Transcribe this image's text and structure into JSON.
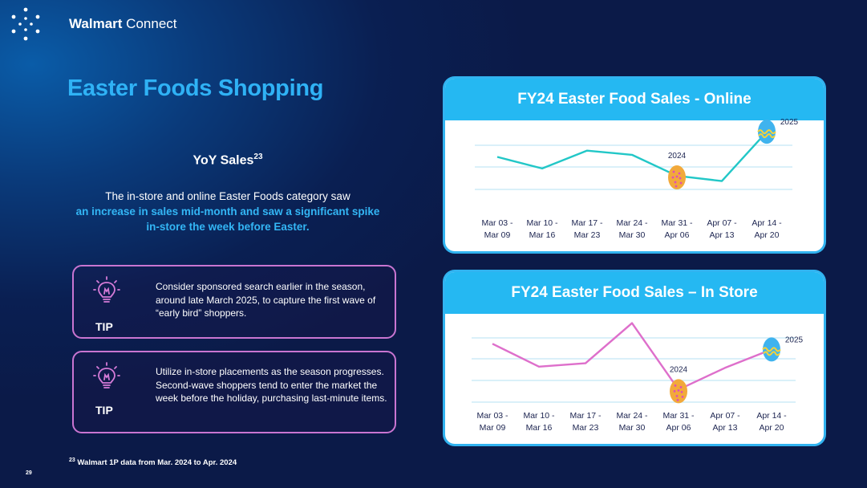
{
  "brand": {
    "name_bold": "Walmart",
    "name_light": " Connect"
  },
  "page_title": "Easter Foods Shopping",
  "yoy": {
    "title": "YoY Sales",
    "sup": "23"
  },
  "description": {
    "line1": "The in-store and online Easter Foods category saw",
    "highlight": "an increase in sales mid-month and saw a significant spike in-store the week before Easter."
  },
  "tips": [
    {
      "label": "TIP",
      "text": "Consider sponsored search earlier in the season, around late March 2025, to capture the first wave of “early bird” shoppers."
    },
    {
      "label": "TIP",
      "text": "Utilize in-store placements as the season progresses. Second-wave shoppers tend to enter the market the week before the holiday, purchasing last-minute items."
    }
  ],
  "footnote": {
    "sup": "23",
    "text": " Walmart 1P data from Mar. 2024 to Apr. 2024"
  },
  "page_number": "29",
  "colors": {
    "accent": "#2fb2f5",
    "online_line": "#22c7c7",
    "instore_line": "#de6fcb",
    "tip_border": "#c975d1",
    "egg_2024": "#f2a93b",
    "egg_2025": "#3fb3ee"
  },
  "chart_data": [
    {
      "type": "line",
      "title": "FY24 Easter Food Sales - Online",
      "categories": [
        "Mar 03 - Mar 09",
        "Mar 10 - Mar 16",
        "Mar 17 - Mar 23",
        "Mar 24 - Mar 30",
        "Mar 31 - Apr 06",
        "Apr 07 - Apr 13",
        "Apr 14 - Apr 20"
      ],
      "values": [
        4.4,
        3.3,
        5.0,
        4.6,
        2.6,
        2.1,
        6.8
      ],
      "ylim": [
        0,
        7.5
      ],
      "grid": true,
      "annotations": [
        {
          "text": "2024",
          "category_index": 4,
          "marker": "egg-2024"
        },
        {
          "text": "2025",
          "category_index": 6,
          "marker": "egg-2025"
        }
      ]
    },
    {
      "type": "line",
      "title": "FY24 Easter Food Sales – In Store",
      "categories": [
        "Mar 03 - Mar 09",
        "Mar 10 - Mar 16",
        "Mar 17 - Mar 23",
        "Mar 24 - Mar 30",
        "Mar 31 - Apr 06",
        "Apr 07 - Apr 13",
        "Apr 14 - Apr 20"
      ],
      "values": [
        4.6,
        2.6,
        2.9,
        6.4,
        0.6,
        2.5,
        4.1
      ],
      "ylim": [
        0,
        7
      ],
      "grid": true,
      "annotations": [
        {
          "text": "2024",
          "category_index": 4,
          "marker": "egg-2024"
        },
        {
          "text": "2025",
          "category_index": 6,
          "marker": "egg-2025"
        }
      ]
    }
  ]
}
